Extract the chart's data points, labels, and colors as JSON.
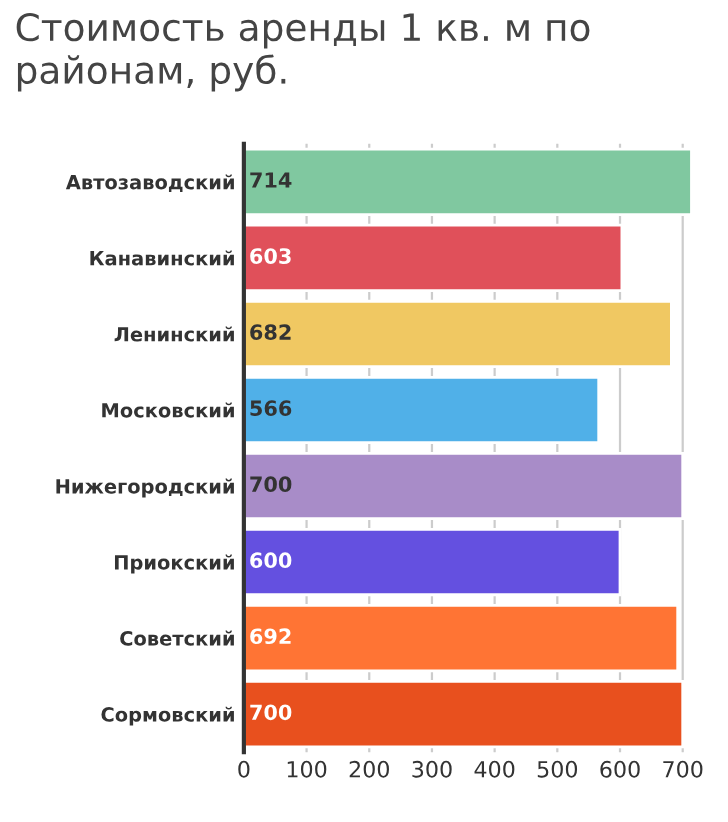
{
  "chart_data": {
    "type": "bar",
    "orientation": "horizontal",
    "title": "Стоимость аренды 1 кв. м по районам, руб.",
    "categories": [
      "Автозаводский",
      "Канавинский",
      "Ленинский",
      "Московский",
      "Нижегородский",
      "Приокский",
      "Советский",
      "Сормовский"
    ],
    "values": [
      714,
      603,
      682,
      566,
      700,
      600,
      692,
      700
    ],
    "colors": [
      "#80c8a0",
      "#e0505a",
      "#f0c862",
      "#50b0e8",
      "#a88cc8",
      "#6450e0",
      "#ff7434",
      "#e8501e"
    ],
    "xlim": [
      0,
      720
    ],
    "xticks": [
      0,
      100,
      200,
      300,
      400,
      500,
      600,
      700
    ],
    "grid": "x",
    "data_labels": true
  }
}
